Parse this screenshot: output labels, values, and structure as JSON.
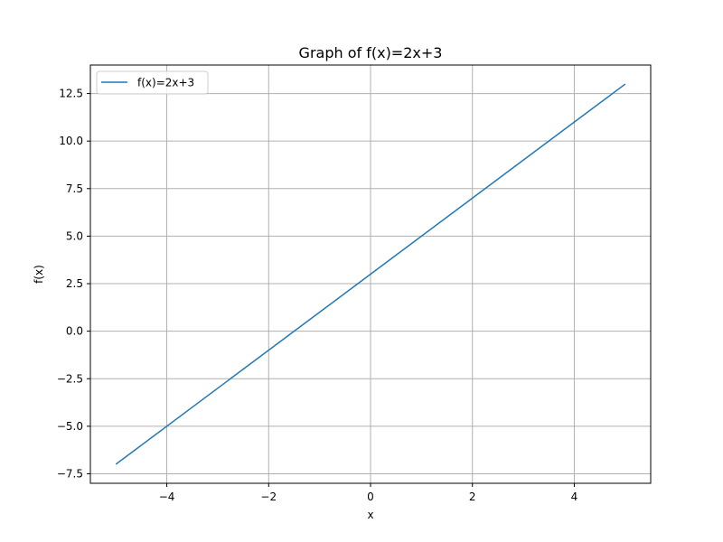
{
  "chart_data": {
    "type": "line",
    "title": "Graph of f(x)=2x+3",
    "xlabel": "x",
    "ylabel": "f(x)",
    "xlim": [
      -5.5,
      5.5
    ],
    "ylim": [
      -8,
      14
    ],
    "x_ticks": [
      -4,
      -2,
      0,
      2,
      4
    ],
    "x_tick_labels": [
      "−4",
      "−2",
      "0",
      "2",
      "4"
    ],
    "y_ticks": [
      -7.5,
      -5,
      -2.5,
      0,
      2.5,
      5,
      7.5,
      10,
      12.5
    ],
    "y_tick_labels": [
      "−7.5",
      "−5.0",
      "−2.5",
      "0.0",
      "2.5",
      "5.0",
      "7.5",
      "10.0",
      "12.5"
    ],
    "grid": true,
    "legend_position": "top-left",
    "series": [
      {
        "name": "f(x)=2x+3",
        "color": "#1f77b4",
        "x": [
          -5,
          5
        ],
        "y": [
          -7,
          13
        ]
      }
    ]
  }
}
